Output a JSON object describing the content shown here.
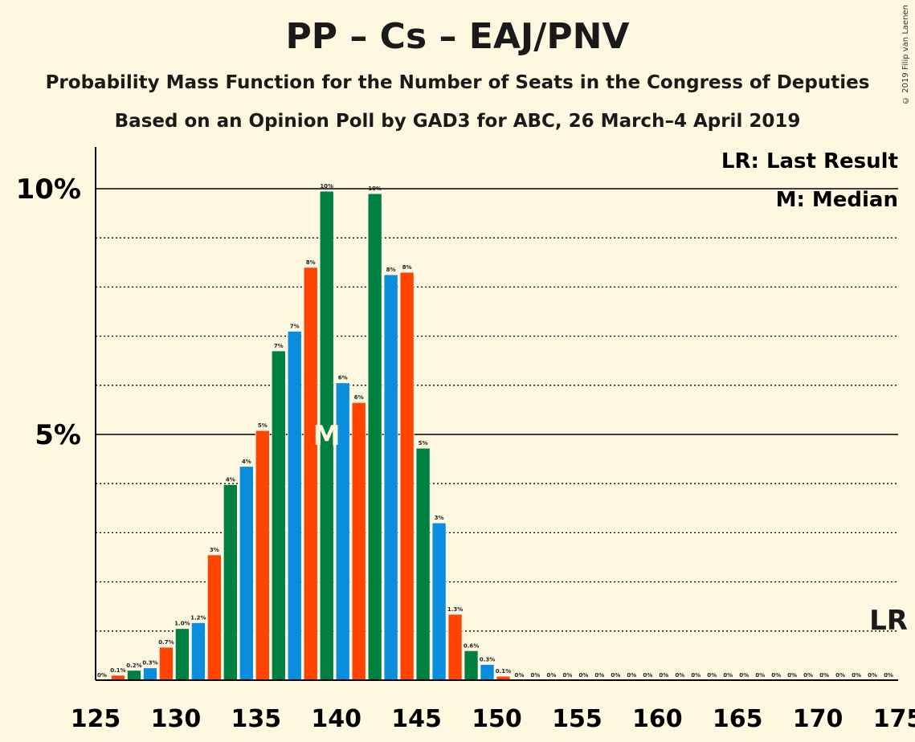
{
  "title": "PP – Cs – EAJ/PNV",
  "subtitle1": "Probability Mass Function for the Number of Seats in the Congress of Deputies",
  "subtitle2": "Based on an Opinion Poll by GAD3 for ABC, 26 March–4 April 2019",
  "copyright": "© 2019 Filip van Laenen",
  "legend": {
    "lr": "LR: Last Result",
    "median": "M: Median"
  },
  "markers": {
    "median_label": "M",
    "lr_label": "LR"
  },
  "colors": {
    "blue": "#0A8DDD",
    "red": "#FF4400",
    "green": "#008040",
    "background": "#FFF8E1"
  },
  "chart_data": {
    "type": "bar",
    "x_ticks": [
      125,
      130,
      135,
      140,
      145,
      150,
      155,
      160,
      165,
      170,
      175
    ],
    "y_ticks": [
      {
        "value": 5,
        "label": "5%"
      },
      {
        "value": 10,
        "label": "10%"
      }
    ],
    "y_gridlines_dotted": [
      1,
      2,
      3,
      4,
      6,
      7,
      8,
      9
    ],
    "xlim": [
      125,
      175
    ],
    "ylim": [
      0,
      10.9
    ],
    "median": 139,
    "last_result": 174,
    "bars": [
      {
        "x": 125,
        "value": 0.0,
        "label": "0%"
      },
      {
        "x": 126,
        "value": 0.1,
        "label": "0.1%"
      },
      {
        "x": 127,
        "value": 0.2,
        "label": "0.2%"
      },
      {
        "x": 128,
        "value": 0.25,
        "label": "0.3%"
      },
      {
        "x": 129,
        "value": 0.67,
        "label": "0.7%"
      },
      {
        "x": 130,
        "value": 1.05,
        "label": "1.0%"
      },
      {
        "x": 131,
        "value": 1.17,
        "label": "1.2%"
      },
      {
        "x": 132,
        "value": 2.55,
        "label": "3%"
      },
      {
        "x": 133,
        "value": 3.98,
        "label": "4%"
      },
      {
        "x": 134,
        "value": 4.35,
        "label": "4%"
      },
      {
        "x": 135,
        "value": 5.08,
        "label": "5%"
      },
      {
        "x": 136,
        "value": 6.7,
        "label": "7%"
      },
      {
        "x": 137,
        "value": 7.1,
        "label": "7%"
      },
      {
        "x": 138,
        "value": 8.4,
        "label": "8%"
      },
      {
        "x": 139,
        "value": 9.95,
        "label": "10%"
      },
      {
        "x": 140,
        "value": 6.05,
        "label": "6%"
      },
      {
        "x": 141,
        "value": 5.65,
        "label": "6%"
      },
      {
        "x": 142,
        "value": 9.9,
        "label": "10%"
      },
      {
        "x": 143,
        "value": 8.25,
        "label": "8%"
      },
      {
        "x": 144,
        "value": 8.3,
        "label": "8%"
      },
      {
        "x": 145,
        "value": 4.72,
        "label": "5%"
      },
      {
        "x": 146,
        "value": 3.2,
        "label": "3%"
      },
      {
        "x": 147,
        "value": 1.34,
        "label": "1.3%"
      },
      {
        "x": 148,
        "value": 0.6,
        "label": "0.6%"
      },
      {
        "x": 149,
        "value": 0.32,
        "label": "0.3%"
      },
      {
        "x": 150,
        "value": 0.08,
        "label": "0.1%"
      },
      {
        "x": 151,
        "value": 0,
        "label": "0%"
      },
      {
        "x": 152,
        "value": 0,
        "label": "0%"
      },
      {
        "x": 153,
        "value": 0,
        "label": "0%"
      },
      {
        "x": 154,
        "value": 0,
        "label": "0%"
      },
      {
        "x": 155,
        "value": 0,
        "label": "0%"
      },
      {
        "x": 156,
        "value": 0,
        "label": "0%"
      },
      {
        "x": 157,
        "value": 0,
        "label": "0%"
      },
      {
        "x": 158,
        "value": 0,
        "label": "0%"
      },
      {
        "x": 159,
        "value": 0,
        "label": "0%"
      },
      {
        "x": 160,
        "value": 0,
        "label": "0%"
      },
      {
        "x": 161,
        "value": 0,
        "label": "0%"
      },
      {
        "x": 162,
        "value": 0,
        "label": "0%"
      },
      {
        "x": 163,
        "value": 0,
        "label": "0%"
      },
      {
        "x": 164,
        "value": 0,
        "label": "0%"
      },
      {
        "x": 165,
        "value": 0,
        "label": "0%"
      },
      {
        "x": 166,
        "value": 0,
        "label": "0%"
      },
      {
        "x": 167,
        "value": 0,
        "label": "0%"
      },
      {
        "x": 168,
        "value": 0,
        "label": "0%"
      },
      {
        "x": 169,
        "value": 0,
        "label": "0%"
      },
      {
        "x": 170,
        "value": 0,
        "label": "0%"
      },
      {
        "x": 171,
        "value": 0,
        "label": "0%"
      },
      {
        "x": 172,
        "value": 0,
        "label": "0%"
      },
      {
        "x": 173,
        "value": 0,
        "label": "0%"
      },
      {
        "x": 174,
        "value": 0,
        "label": "0%"
      }
    ],
    "color_cycle": [
      "blue",
      "red",
      "green"
    ],
    "grid": true,
    "legend_position": "top-right"
  }
}
